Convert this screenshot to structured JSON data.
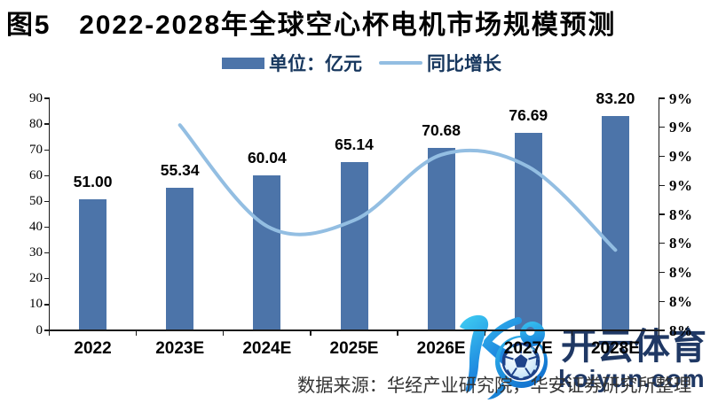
{
  "title": {
    "prefix": "图5",
    "text": "2022-2028年全球空心杯电机市场规模预测"
  },
  "legend": {
    "bar_label": "单位：亿元",
    "line_label": "同比增长"
  },
  "source_note": "数据来源：华经产业研究院，华安证券研究所整理",
  "watermark": {
    "brand_cn": "开云体育",
    "brand_en": "koiyun.com",
    "k_logo_icon": "stylized-k-with-football",
    "navy": "#1f3864",
    "gradient_top": "#43c7f4",
    "gradient_mid": "#1f8ae0",
    "gradient_bottom": "#0b63c8"
  },
  "colors": {
    "bar": "#4c74a9",
    "line": "#93bee2",
    "axis": "#1a1a1a",
    "text": "#000000",
    "legend_text": "#17375e",
    "source_text": "#333333"
  },
  "chart_data": {
    "type": "bar+line",
    "title": "2022-2028年全球空心杯电机市场规模预测",
    "categories": [
      "2022",
      "2023E",
      "2024E",
      "2025E",
      "2026E",
      "2027E",
      "2028E"
    ],
    "series": [
      {
        "name": "单位：亿元",
        "type": "bar",
        "axis": "left",
        "values": [
          51.0,
          55.34,
          60.04,
          65.14,
          70.68,
          76.69,
          83.2
        ],
        "labels": [
          "51.00",
          "55.34",
          "60.04",
          "65.14",
          "70.68",
          "76.69",
          "83.20"
        ]
      },
      {
        "name": "同比增长",
        "type": "line",
        "axis": "right",
        "smooth": true,
        "values": [
          null,
          8.51,
          8.493,
          8.494,
          8.505,
          8.503,
          8.489
        ]
      }
    ],
    "left_axis": {
      "min": 0,
      "max": 90,
      "tick_step": 10,
      "tick_labels": [
        "0",
        "10",
        "20",
        "30",
        "40",
        "50",
        "60",
        "70",
        "80",
        "90"
      ]
    },
    "right_axis": {
      "min": 8.4755,
      "max": 8.5145,
      "tick_labels": [
        "8%",
        "8%",
        "8%",
        "8%",
        "8%",
        "9%",
        "9%",
        "9%",
        "9%"
      ]
    },
    "grid": false,
    "legend_position": "top"
  }
}
